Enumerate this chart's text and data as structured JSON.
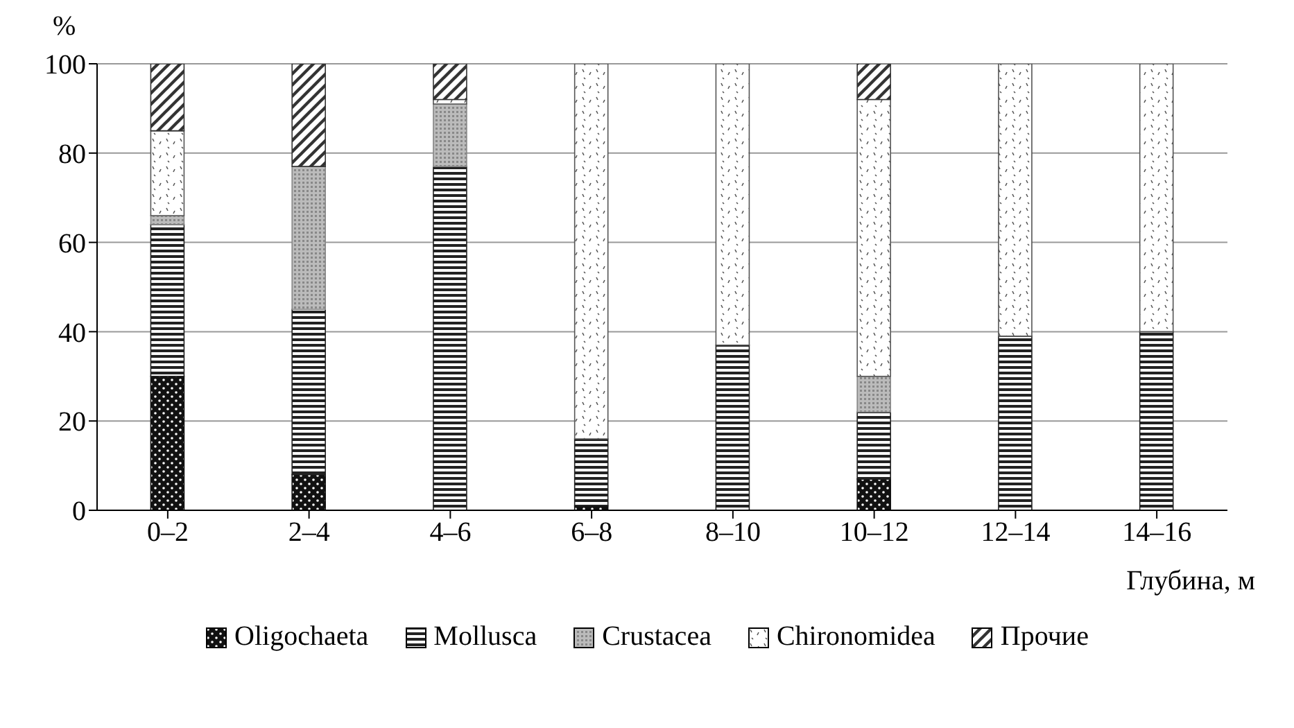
{
  "chart_data": {
    "type": "bar",
    "stacked": true,
    "categories": [
      "0–2",
      "2–4",
      "4–6",
      "6–8",
      "8–10",
      "10–12",
      "12–14",
      "14–16"
    ],
    "series": [
      {
        "name": "Oligochaeta",
        "color": "#111111",
        "values": [
          30,
          8,
          0,
          1,
          0,
          7,
          0,
          0
        ]
      },
      {
        "name": "Mollusca",
        "color": "#222222",
        "values": [
          34,
          37,
          77,
          15,
          37,
          15,
          39,
          40
        ]
      },
      {
        "name": "Crustacea",
        "color": "#888888",
        "values": [
          2,
          32,
          14,
          0,
          0,
          8,
          0,
          0
        ]
      },
      {
        "name": "Chironomidea",
        "color": "#555555",
        "values": [
          19,
          0,
          1,
          84,
          63,
          62,
          61,
          60
        ]
      },
      {
        "name": "Прочие",
        "color": "#333333",
        "values": [
          15,
          23,
          8,
          0,
          0,
          8,
          0,
          0
        ]
      }
    ],
    "ylim": [
      0,
      100
    ],
    "yticks": [
      0,
      20,
      40,
      60,
      80,
      100
    ],
    "ylabel": "%",
    "xlabel": "Глубина, м",
    "grid": "y",
    "legend": "bottom"
  }
}
